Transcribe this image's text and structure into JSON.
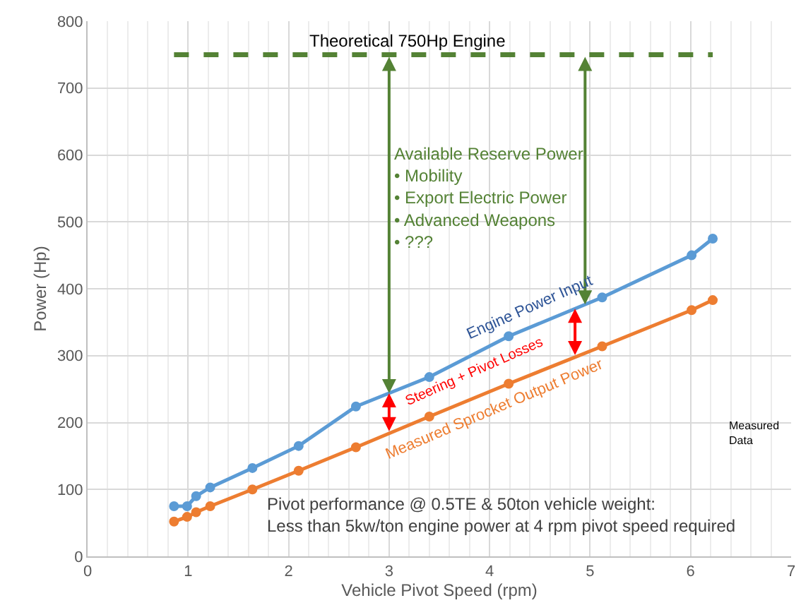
{
  "chart_data": {
    "type": "line",
    "xlabel": "Vehicle Pivot Speed (rpm)",
    "ylabel": "Power (Hp)",
    "xlim": [
      0,
      7
    ],
    "xticks": [
      0,
      1,
      2,
      3,
      4,
      5,
      6,
      7
    ],
    "ylim": [
      0,
      800
    ],
    "yticks": [
      0,
      100,
      200,
      300,
      400,
      500,
      600,
      700,
      800
    ],
    "grid": true,
    "legend": false,
    "marker": "circle",
    "line_style": "solid",
    "series": [
      {
        "name": "Engine Power Input",
        "color": "#5b9bd5",
        "x": [
          0.86,
          0.99,
          1.08,
          1.22,
          1.64,
          2.1,
          2.67,
          3.4,
          4.19,
          5.12,
          6.01,
          6.22
        ],
        "values": [
          75,
          75,
          90,
          103,
          132,
          165,
          224,
          268,
          329,
          387,
          450,
          475
        ]
      },
      {
        "name": "Measured Sprocket Output Power",
        "color": "#ed7d31",
        "x": [
          0.86,
          0.99,
          1.08,
          1.22,
          1.64,
          2.1,
          2.67,
          3.4,
          4.19,
          5.12,
          6.01,
          6.22
        ],
        "values": [
          52,
          59,
          66,
          75,
          100,
          128,
          163,
          209,
          258,
          314,
          368,
          383
        ]
      }
    ],
    "ref_lines": [
      {
        "axis": "y",
        "value": 750,
        "label": "Theoretical 750Hp Engine",
        "color": "#548235",
        "line_style": "dashed"
      }
    ],
    "annotations": [
      "Available Reserve Power\n• Mobility\n• Export Electric Power\n• Advanced Weapons\n• ???",
      "Steering + Pivot Losses",
      "Measured\nData",
      "Pivot performance @ 0.5TE & 50ton vehicle weight:\nLess than 5kw/ton engine power at 4 rpm pivot speed required"
    ]
  }
}
